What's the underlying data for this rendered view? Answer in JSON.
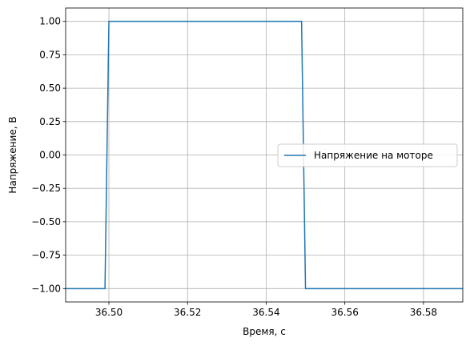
{
  "chart_data": {
    "type": "line",
    "title": "",
    "xlabel": "Время, с",
    "ylabel": "Напряжение, В",
    "xlim": [
      36.489,
      36.59
    ],
    "ylim": [
      -1.1,
      1.1
    ],
    "xticks": [
      36.5,
      36.52,
      36.54,
      36.56,
      36.58
    ],
    "xtick_labels": [
      "36.50",
      "36.52",
      "36.54",
      "36.56",
      "36.58"
    ],
    "yticks": [
      1.0,
      0.75,
      0.5,
      0.25,
      0.0,
      -0.25,
      -0.5,
      -0.75,
      -1.0
    ],
    "ytick_labels": [
      "1.00",
      "0.75",
      "0.50",
      "0.25",
      "0.00",
      "−0.25",
      "−0.50",
      "−0.75",
      "−1.00"
    ],
    "grid": true,
    "legend_position": "center-right",
    "series": [
      {
        "name": "Напряжение на моторе",
        "color": "#1f77b4",
        "x": [
          36.489,
          36.499,
          36.5,
          36.549,
          36.55,
          36.59
        ],
        "y": [
          -1,
          -1,
          1,
          1,
          -1,
          -1
        ]
      }
    ]
  }
}
